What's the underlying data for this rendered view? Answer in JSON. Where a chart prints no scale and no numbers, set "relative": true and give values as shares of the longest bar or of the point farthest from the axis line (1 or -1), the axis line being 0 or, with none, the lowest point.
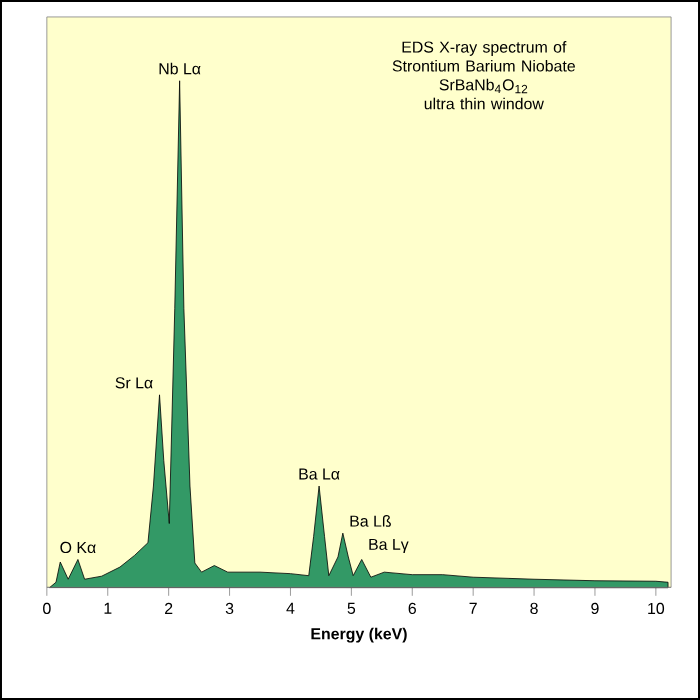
{
  "chart_data": {
    "type": "area",
    "relative": true,
    "title": "EDS X-ray spectrum of Strontium Barium Niobate",
    "subtitle": "SrBaNb$_{4}$O$_{12}$",
    "xlabel": "Energy (keV)",
    "xlim": [
      0,
      10.25
    ],
    "xticks": [
      0,
      1,
      2,
      3,
      4,
      5,
      6,
      7,
      8,
      9,
      10
    ],
    "grid": false,
    "annotations": [
      "ultra thin window",
      {
        "text": "Nb Lα",
        "x": 2.18,
        "y": 1
      },
      {
        "text": "Sr Lα",
        "x": 1.85,
        "y": 0.38
      },
      {
        "text": "Ba Lα",
        "x": 4.47,
        "y": 0.2
      },
      {
        "text": "Ba Lß",
        "x": 4.86,
        "y": 0.107
      },
      {
        "text": "Ba Lγ",
        "x": 5.17,
        "y": 0.055
      },
      {
        "text": "O Kα",
        "x": 0.51,
        "y": 0.055
      }
    ],
    "x": [
      0.05,
      0.15,
      0.22,
      0.35,
      0.51,
      0.62,
      0.9,
      1.2,
      1.44,
      1.66,
      1.75,
      1.85,
      1.92,
      2.01,
      2.1,
      2.18,
      2.25,
      2.35,
      2.43,
      2.54,
      2.75,
      2.97,
      3.5,
      4.0,
      4.3,
      4.38,
      4.47,
      4.56,
      4.63,
      4.78,
      4.86,
      4.95,
      5.03,
      5.17,
      5.32,
      5.54,
      6.0,
      6.5,
      7.0,
      8.0,
      9.0,
      10.0,
      10.2
    ],
    "series": [
      {
        "color": "#339966",
        "values": [
          0,
          0.01,
          0.05,
          0.016,
          0.055,
          0.016,
          0.022,
          0.04,
          0.063,
          0.088,
          0.2,
          0.38,
          0.25,
          0.126,
          0.55,
          1,
          0.55,
          0.2,
          0.048,
          0.03,
          0.043,
          0.03,
          0.03,
          0.027,
          0.023,
          0.1,
          0.2,
          0.1,
          0.023,
          0.06,
          0.107,
          0.06,
          0.023,
          0.055,
          0.02,
          0.03,
          0.025,
          0.025,
          0.02,
          0.016,
          0.013,
          0.012,
          0.01
        ]
      }
    ]
  }
}
